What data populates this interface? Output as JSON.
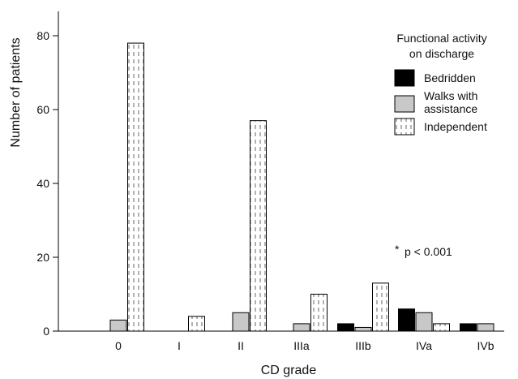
{
  "chart_data": {
    "type": "bar",
    "xlabel": "CD grade",
    "ylabel": "Number of patients",
    "ylim": [
      0,
      80
    ],
    "yticks": [
      0,
      20,
      40,
      60,
      80
    ],
    "categories": [
      "0",
      "I",
      "II",
      "IIIa",
      "IIIb",
      "IVa",
      "IVb"
    ],
    "series": [
      {
        "name": "Bedridden",
        "fill": "solid",
        "color": "#000000",
        "values": [
          0,
          0,
          0,
          0,
          2,
          6,
          2
        ]
      },
      {
        "name": "Walks with assistance",
        "fill": "solid",
        "color": "#c8c8c8",
        "values": [
          3,
          0,
          5,
          2,
          1,
          5,
          2
        ]
      },
      {
        "name": "Independent",
        "fill": "dash-pattern",
        "color": "#ffffff",
        "values": [
          78,
          4,
          57,
          10,
          13,
          2,
          0
        ]
      }
    ],
    "legend": {
      "title_lines": [
        "Functional activity",
        "on discharge"
      ],
      "placement": "top-right",
      "labels": [
        [
          "Bedridden"
        ],
        [
          "Walks with",
          "assistance"
        ],
        [
          "Independent"
        ]
      ]
    },
    "annotation": {
      "star": "*",
      "text": "p < 0.001"
    },
    "grid": false
  }
}
